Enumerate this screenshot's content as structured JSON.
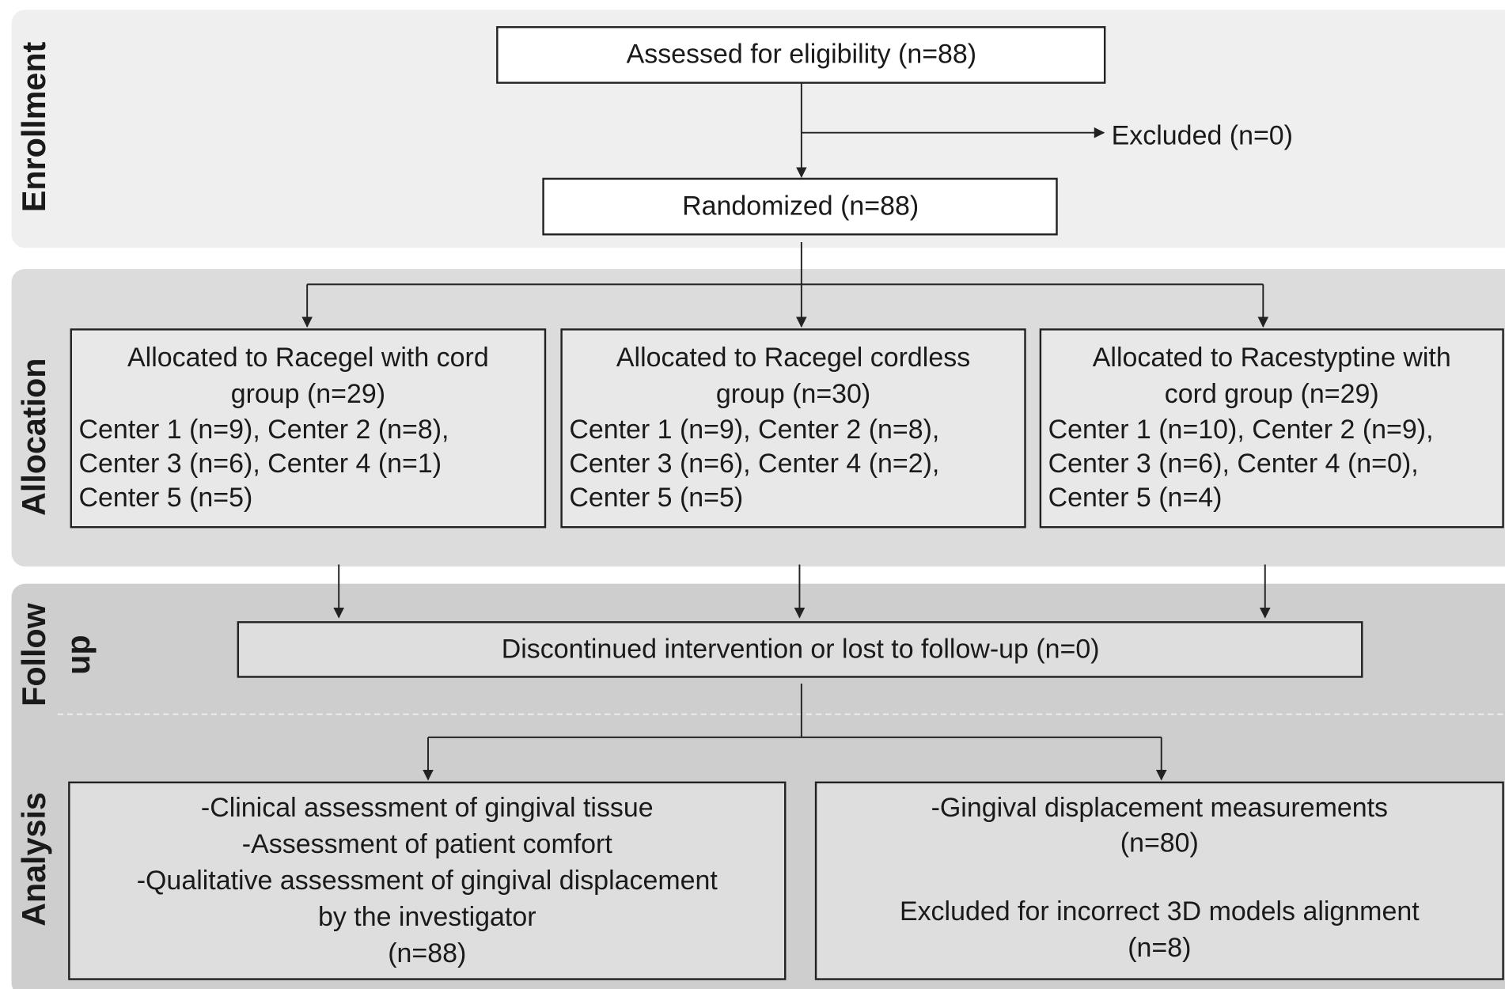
{
  "stages": [
    {
      "lines": [
        "Enrollment"
      ]
    },
    {
      "lines": [
        "Allocation"
      ]
    },
    {
      "lines": [
        "Follow",
        "up"
      ]
    },
    {
      "lines": [
        "Analysis"
      ]
    }
  ],
  "enrollment": {
    "assessed": "Assessed for eligibility (n=88)",
    "excluded": "Excluded (n=0)",
    "randomized": "Randomized (n=88)"
  },
  "allocation": [
    {
      "title": [
        "Allocated to Racegel with cord",
        "group (n=29)"
      ],
      "details": [
        "Center 1 (n=9), Center 2 (n=8),",
        "Center 3 (n=6), Center 4 (n=1)",
        "Center 5 (n=5)"
      ]
    },
    {
      "title": [
        "Allocated to Racegel cordless",
        "group (n=30)"
      ],
      "details": [
        "Center 1 (n=9), Center 2 (n=8),",
        "Center 3 (n=6), Center 4 (n=2),",
        "Center 5 (n=5)"
      ]
    },
    {
      "title": [
        "Allocated to Racestyptine with",
        "cord group (n=29)"
      ],
      "details": [
        "Center 1 (n=10), Center 2 (n=9),",
        "Center 3 (n=6), Center 4 (n=0),",
        "Center 5 (n=4)"
      ]
    }
  ],
  "follow_up": "Discontinued intervention or lost to follow-up (n=0)",
  "analysis": [
    {
      "lines": [
        "-Clinical assessment of gingival tissue",
        "-Assessment of patient comfort",
        "-Qualitative assessment of gingival displacement",
        "by the investigator",
        "(n=88)"
      ]
    },
    {
      "lines": [
        "-Gingival displacement measurements",
        "(n=80)",
        "Excluded for incorrect 3D models alignment",
        "(n=8)"
      ]
    }
  ]
}
